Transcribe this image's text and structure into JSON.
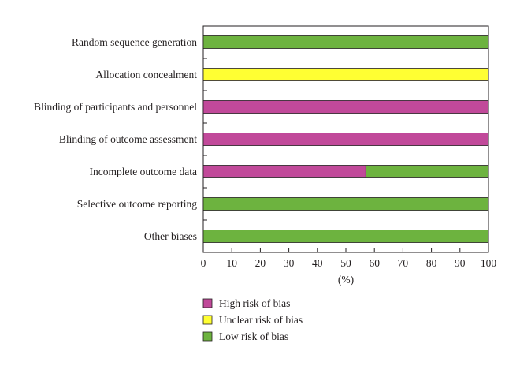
{
  "chart_data": {
    "type": "bar",
    "orientation": "horizontal",
    "stacked": true,
    "categories": [
      "Random sequence generation",
      "Allocation concealment",
      "Blinding of participants and personnel",
      "Blinding of outcome assessment",
      "Incomplete outcome data",
      "Selective outcome reporting",
      "Other biases"
    ],
    "series": [
      {
        "name": "High risk of bias",
        "color": "#c1499a",
        "values": [
          0,
          0,
          100,
          100,
          57,
          0,
          0
        ]
      },
      {
        "name": "Unclear risk of bias",
        "color": "#ffff33",
        "values": [
          0,
          100,
          0,
          0,
          0,
          0,
          0
        ]
      },
      {
        "name": "Low risk of bias",
        "color": "#6db33f",
        "values": [
          100,
          0,
          0,
          0,
          43,
          100,
          100
        ]
      }
    ],
    "xlabel": "(%)",
    "xlim": [
      0,
      100
    ],
    "xticks": [
      0,
      10,
      20,
      30,
      40,
      50,
      60,
      70,
      80,
      90,
      100
    ],
    "grid": false,
    "legend_position": "bottom"
  }
}
